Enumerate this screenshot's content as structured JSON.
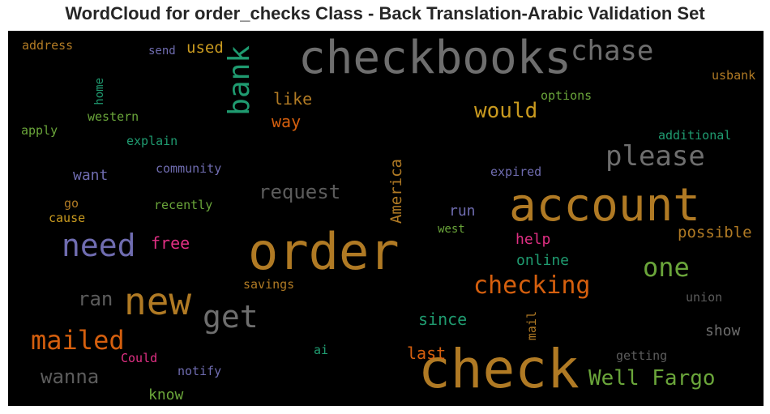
{
  "title": "WordCloud for order_checks Class - Back Translation-Arabic Validation Set",
  "colors": {
    "orange_brown": "#b07a24",
    "gray": "#6e6e6e",
    "dark_gray": "#5c5c5c",
    "green": "#6aa53a",
    "teal": "#1f9b70",
    "purple": "#6f6cb0",
    "orange": "#d55f0e",
    "pink": "#e02f83",
    "gold": "#c99a1f"
  },
  "words": [
    "checkbooks",
    "order",
    "check",
    "account",
    "new",
    "need",
    "get",
    "mailed",
    "please",
    "checking",
    "bank",
    "chase",
    "one",
    "would",
    "Well Fargo",
    "request",
    "wanna",
    "ran",
    "free",
    "America",
    "like",
    "way",
    "since",
    "last",
    "possible",
    "help",
    "online",
    "show",
    "run",
    "used",
    "send",
    "address",
    "home",
    "western",
    "apply",
    "explain",
    "want",
    "community",
    "recently",
    "go",
    "cause",
    "savings",
    "Could",
    "notify",
    "know",
    "ai",
    "mail",
    "west",
    "options",
    "additional",
    "usbank",
    "expired",
    "union",
    "getting"
  ]
}
